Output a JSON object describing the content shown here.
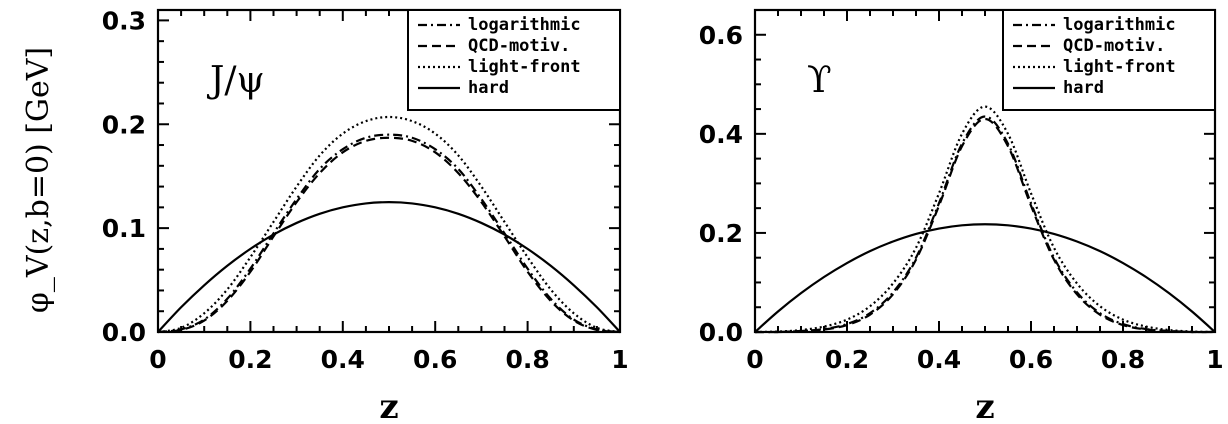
{
  "figure": {
    "ylabel": "φ_V(z,b=0)  [GeV]"
  },
  "chart_data": [
    {
      "type": "line",
      "panel_label": "J/ψ",
      "xlabel": "z",
      "ylabel": "φ_V(z,b=0)  [GeV]",
      "xlim": [
        0,
        1
      ],
      "ylim": [
        0,
        0.31
      ],
      "xticks": [
        "0",
        "0.2",
        "0.4",
        "0.6",
        "0.8",
        "1"
      ],
      "yticks": [
        "0.0",
        "0.1",
        "0.2",
        "0.3"
      ],
      "legend_position": "top-right",
      "x": [
        0,
        0.05,
        0.1,
        0.15,
        0.2,
        0.25,
        0.3,
        0.35,
        0.4,
        0.45,
        0.5,
        0.55,
        0.6,
        0.65,
        0.7,
        0.75,
        0.8,
        0.85,
        0.9,
        0.95,
        1
      ],
      "series": [
        {
          "name": "logarithmic",
          "style": "dash-dot",
          "values": [
            0,
            0.0025,
            0.012,
            0.032,
            0.061,
            0.095,
            0.128,
            0.157,
            0.176,
            0.187,
            0.19,
            0.187,
            0.176,
            0.157,
            0.128,
            0.095,
            0.061,
            0.032,
            0.012,
            0.0025,
            0
          ]
        },
        {
          "name": "QCD-motiv.",
          "style": "dashed",
          "values": [
            0,
            0.002,
            0.011,
            0.03,
            0.058,
            0.092,
            0.125,
            0.153,
            0.173,
            0.184,
            0.187,
            0.184,
            0.173,
            0.153,
            0.125,
            0.092,
            0.058,
            0.03,
            0.011,
            0.002,
            0
          ]
        },
        {
          "name": "light-front",
          "style": "dotted",
          "values": [
            0,
            0.004,
            0.018,
            0.041,
            0.072,
            0.106,
            0.14,
            0.17,
            0.191,
            0.203,
            0.207,
            0.203,
            0.191,
            0.17,
            0.14,
            0.106,
            0.072,
            0.041,
            0.018,
            0.004,
            0
          ]
        },
        {
          "name": "hard",
          "style": "solid",
          "values": [
            0,
            0.0238,
            0.045,
            0.0638,
            0.08,
            0.0938,
            0.105,
            0.1138,
            0.12,
            0.1238,
            0.125,
            0.1238,
            0.12,
            0.1138,
            0.105,
            0.0938,
            0.08,
            0.0638,
            0.045,
            0.0238,
            0
          ]
        }
      ]
    },
    {
      "type": "line",
      "panel_label": "ϒ",
      "xlabel": "z",
      "ylabel": "",
      "xlim": [
        0,
        1
      ],
      "ylim": [
        0,
        0.65
      ],
      "xticks": [
        "0",
        "0.2",
        "0.4",
        "0.6",
        "0.8",
        "1"
      ],
      "yticks": [
        "0.0",
        "0.2",
        "0.4",
        "0.6"
      ],
      "legend_position": "top-right",
      "x": [
        0,
        0.05,
        0.1,
        0.15,
        0.2,
        0.25,
        0.3,
        0.35,
        0.4,
        0.45,
        0.5,
        0.55,
        0.6,
        0.65,
        0.7,
        0.75,
        0.8,
        0.85,
        0.9,
        0.95,
        1
      ],
      "series": [
        {
          "name": "logarithmic",
          "style": "dash-dot",
          "values": [
            0,
            0,
            0.002,
            0.006,
            0.016,
            0.038,
            0.08,
            0.15,
            0.26,
            0.38,
            0.435,
            0.38,
            0.26,
            0.15,
            0.08,
            0.038,
            0.016,
            0.006,
            0.002,
            0,
            0
          ]
        },
        {
          "name": "QCD-motiv.",
          "style": "dashed",
          "values": [
            0,
            0,
            0.002,
            0.005,
            0.014,
            0.035,
            0.076,
            0.146,
            0.255,
            0.375,
            0.43,
            0.375,
            0.255,
            0.146,
            0.076,
            0.035,
            0.014,
            0.005,
            0.002,
            0,
            0
          ]
        },
        {
          "name": "light-front",
          "style": "dotted",
          "values": [
            0,
            0.001,
            0.004,
            0.011,
            0.025,
            0.052,
            0.098,
            0.17,
            0.28,
            0.4,
            0.455,
            0.4,
            0.28,
            0.17,
            0.098,
            0.052,
            0.025,
            0.011,
            0.004,
            0.001,
            0
          ]
        },
        {
          "name": "hard",
          "style": "solid",
          "values": [
            0,
            0.0414,
            0.0784,
            0.111,
            0.1392,
            0.1633,
            0.1827,
            0.198,
            0.2088,
            0.2153,
            0.2175,
            0.2153,
            0.2088,
            0.198,
            0.1827,
            0.1633,
            0.1392,
            0.111,
            0.0784,
            0.0414,
            0
          ]
        }
      ]
    }
  ]
}
